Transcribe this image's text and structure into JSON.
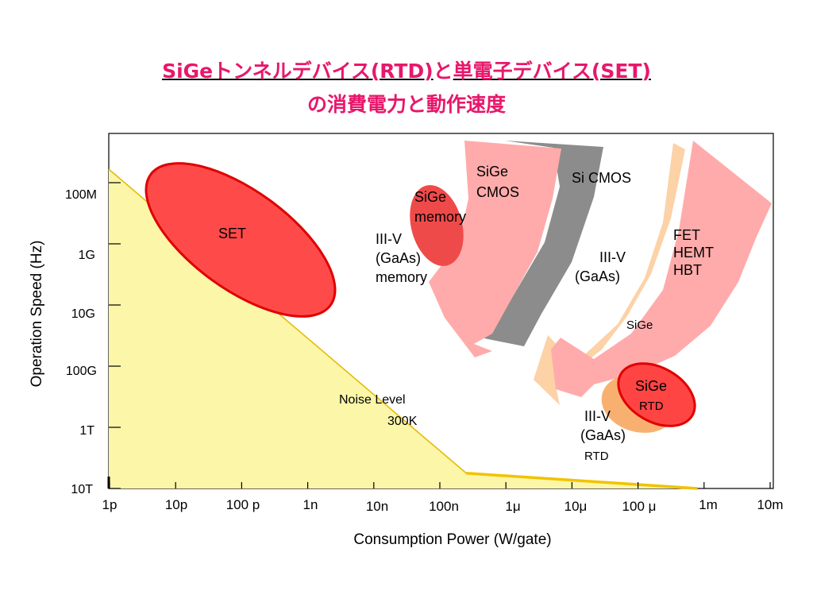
{
  "title": {
    "line1_a": "SiGeトンネルデバイス(RTD)",
    "line1_b": "と",
    "line1_c": "単電子デバイス(SET)",
    "line2": "の消費電力と動作速度"
  },
  "colors": {
    "title": "#e8176b",
    "noise_fill": "#fbf6a8",
    "noise_line": "#e6b800",
    "red_device": "#ff4444",
    "pink_device": "#ffaaaa",
    "gray_device": "#8c8c8c",
    "peach_device": "#fcd2a6",
    "orange_device": "#f8b070"
  },
  "chart_data": {
    "type": "region-plot",
    "xlabel": "Consumption Power (W/gate)",
    "ylabel": "Operation Speed (Hz)",
    "x_ticks": [
      "1p",
      "10p",
      "100 p",
      "1n",
      "10n",
      "100n",
      "1μ",
      "10μ",
      "100 μ",
      "1m",
      "10m"
    ],
    "y_ticks": [
      "100M",
      "1G",
      "10G",
      "100G",
      "1T",
      "10T"
    ],
    "x_log_values": [
      -12,
      -11,
      -10,
      -9,
      -8,
      -7,
      -6,
      -5,
      -4,
      -3,
      -2
    ],
    "y_log_values": [
      8,
      9,
      10,
      11,
      12,
      13
    ],
    "noise_level": {
      "label_line1": "Noise Level",
      "label_line2": "300K",
      "points": [
        [
          -12,
          7.8
        ],
        [
          -6.6,
          12.75
        ],
        [
          -3.1,
          13.0
        ]
      ]
    },
    "labels": {
      "set": "SET",
      "sige_memory_1": "SiGe",
      "sige_memory_2": "memory",
      "iiiv_memory_1": "III-V",
      "iiiv_memory_2": "(GaAs)",
      "iiiv_memory_3": "memory",
      "sige_cmos_1": "SiGe",
      "sige_cmos_2": "CMOS",
      "si_cmos": "Si CMOS",
      "iiiv_fet_1": "III-V",
      "iiiv_fet_2": "(GaAs)",
      "fet": "FET",
      "hemt": "HEMT",
      "hbt": "HBT",
      "sige_fet": "SiGe",
      "sige_rtd_1": "SiGe",
      "sige_rtd_2": "RTD",
      "iiiv_rtd_1": "III-V",
      "iiiv_rtd_2": "(GaAs)",
      "iiiv_rtd_3": "RTD"
    }
  }
}
